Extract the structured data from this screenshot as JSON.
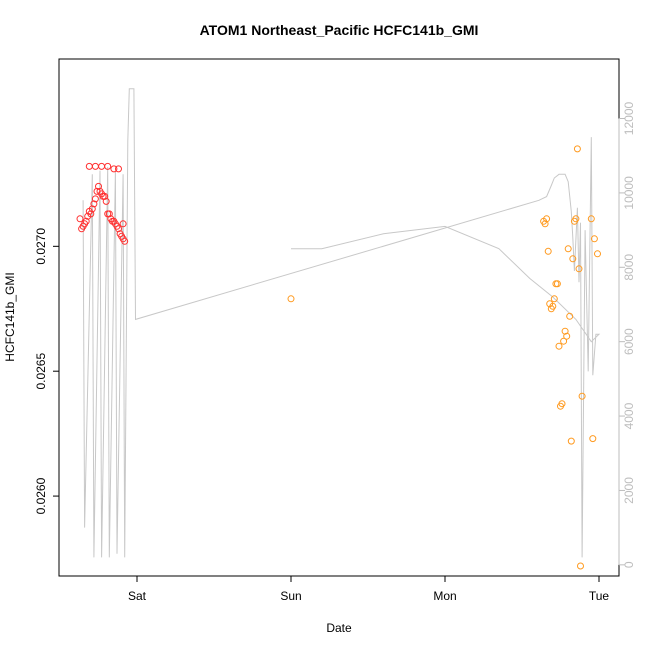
{
  "chart_data": {
    "type": "scatter",
    "title": "ATOM1 Northeast_Pacific HCFC141b_GMI",
    "xlabel": "Date",
    "ylabel": "HCFC141b_GMI",
    "x_ticks": [
      "Sat",
      "Sun",
      "Mon",
      "Tue"
    ],
    "y_ticks": [
      "0.0260",
      "0.0265",
      "0.0270"
    ],
    "y_range": [
      0.02568,
      0.02775
    ],
    "y2_ticks": [
      "0",
      "2000",
      "4000",
      "6000",
      "8000",
      "10000",
      "12000"
    ],
    "y2_range": [
      -300,
      13600
    ],
    "x_range_days_from_sat": [
      -0.5,
      3.05
    ],
    "grid": false,
    "legend": "none",
    "colors": {
      "series_red": "#ff3030",
      "series_orange": "#ff9a1f",
      "altitude_line": "#c8c8c8",
      "axis": "#000000",
      "right_axis": "#bdbdbd"
    },
    "series": [
      {
        "color": "red",
        "points": [
          [
            -0.37,
            0.02711
          ],
          [
            -0.36,
            0.02707
          ],
          [
            -0.35,
            0.02708
          ],
          [
            -0.34,
            0.02709
          ],
          [
            -0.33,
            0.0271
          ],
          [
            -0.32,
            0.02712
          ],
          [
            -0.31,
            0.02714
          ],
          [
            -0.3,
            0.02713
          ],
          [
            -0.29,
            0.02715
          ],
          [
            -0.28,
            0.02717
          ],
          [
            -0.27,
            0.02719
          ],
          [
            -0.26,
            0.02722
          ],
          [
            -0.25,
            0.02724
          ],
          [
            -0.24,
            0.02722
          ],
          [
            -0.23,
            0.02721
          ],
          [
            -0.22,
            0.0272
          ],
          [
            -0.21,
            0.0272
          ],
          [
            -0.2,
            0.02718
          ],
          [
            -0.19,
            0.02713
          ],
          [
            -0.18,
            0.02713
          ],
          [
            -0.17,
            0.02711
          ],
          [
            -0.16,
            0.0271
          ],
          [
            -0.15,
            0.0271
          ],
          [
            -0.14,
            0.02709
          ],
          [
            -0.13,
            0.02708
          ],
          [
            -0.12,
            0.02707
          ],
          [
            -0.11,
            0.02705
          ],
          [
            -0.1,
            0.02704
          ],
          [
            -0.09,
            0.02703
          ],
          [
            -0.08,
            0.02702
          ],
          [
            -0.31,
            0.02732
          ],
          [
            -0.27,
            0.02732
          ],
          [
            -0.23,
            0.02732
          ],
          [
            -0.19,
            0.02732
          ],
          [
            -0.15,
            0.02731
          ],
          [
            -0.12,
            0.02731
          ],
          [
            -0.09,
            0.02709
          ]
        ]
      },
      {
        "color": "orange",
        "points": [
          [
            1.0,
            0.02679
          ],
          [
            2.64,
            0.0271
          ],
          [
            2.65,
            0.02709
          ],
          [
            2.66,
            0.02711
          ],
          [
            2.67,
            0.02698
          ],
          [
            2.68,
            0.02677
          ],
          [
            2.69,
            0.02675
          ],
          [
            2.7,
            0.02676
          ],
          [
            2.71,
            0.02679
          ],
          [
            2.72,
            0.02685
          ],
          [
            2.73,
            0.02685
          ],
          [
            2.74,
            0.0266
          ],
          [
            2.75,
            0.02636
          ],
          [
            2.76,
            0.02637
          ],
          [
            2.77,
            0.02662
          ],
          [
            2.78,
            0.02666
          ],
          [
            2.79,
            0.02664
          ],
          [
            2.8,
            0.02699
          ],
          [
            2.81,
            0.02672
          ],
          [
            2.82,
            0.02622
          ],
          [
            2.83,
            0.02695
          ],
          [
            2.84,
            0.0271
          ],
          [
            2.85,
            0.02711
          ],
          [
            2.86,
            0.02739
          ],
          [
            2.87,
            0.02691
          ],
          [
            2.88,
            0.02572
          ],
          [
            2.89,
            0.0264
          ],
          [
            2.95,
            0.02711
          ],
          [
            2.96,
            0.02623
          ],
          [
            2.97,
            0.02703
          ],
          [
            2.99,
            0.02697
          ]
        ]
      }
    ],
    "altitude_series": {
      "color": "gray",
      "points": [
        [
          -0.35,
          9800
        ],
        [
          -0.34,
          1000
        ],
        [
          -0.29,
          10500
        ],
        [
          -0.28,
          200
        ],
        [
          -0.24,
          10600
        ],
        [
          -0.23,
          200
        ],
        [
          -0.19,
          10700
        ],
        [
          -0.18,
          200
        ],
        [
          -0.14,
          10600
        ],
        [
          -0.13,
          300
        ],
        [
          -0.09,
          10500
        ],
        [
          -0.08,
          200
        ],
        [
          -0.06,
          11400
        ],
        [
          -0.05,
          12800
        ],
        [
          -0.02,
          12800
        ],
        [
          -0.01,
          6600
        ],
        [
          2.61,
          9800
        ],
        [
          2.66,
          9900
        ],
        [
          2.69,
          10200
        ],
        [
          2.71,
          10400
        ],
        [
          2.74,
          10500
        ],
        [
          2.78,
          10500
        ],
        [
          2.8,
          10300
        ],
        [
          2.82,
          9500
        ],
        [
          2.83,
          8800
        ],
        [
          2.84,
          7900
        ],
        [
          2.86,
          9600
        ],
        [
          2.87,
          7600
        ],
        [
          2.88,
          9200
        ],
        [
          2.89,
          200
        ],
        [
          2.91,
          9000
        ],
        [
          2.93,
          5200
        ],
        [
          2.95,
          11500
        ],
        [
          2.96,
          5100
        ],
        [
          2.98,
          6200
        ],
        [
          3.0,
          6200
        ],
        [
          2.95,
          6000
        ],
        [
          2.85,
          6600
        ],
        [
          2.7,
          7200
        ],
        [
          2.55,
          7700
        ],
        [
          2.35,
          8500
        ],
        [
          2.0,
          9100
        ],
        [
          1.6,
          8900
        ],
        [
          1.2,
          8500
        ],
        [
          1.0,
          8500
        ]
      ]
    }
  }
}
